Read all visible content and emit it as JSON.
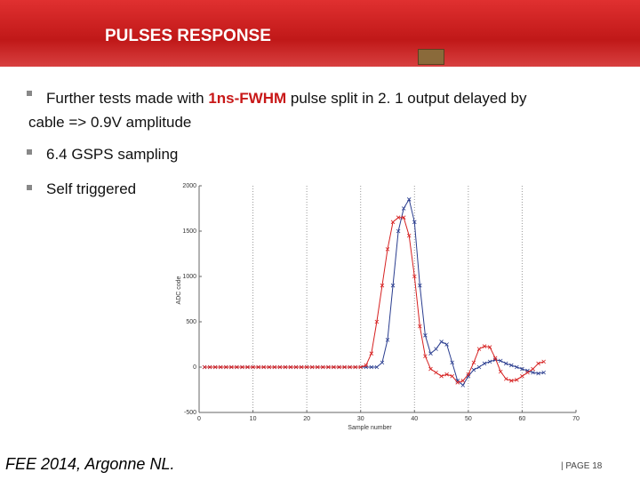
{
  "header": {
    "title": "PULSES RESPONSE"
  },
  "bullets": [
    {
      "before": "Further tests made with ",
      "highlight": "1ns-FWHM",
      "after": " pulse split in 2. 1 output delayed by cable => 0.9V amplitude"
    },
    {
      "text": "6.4 GSPS sampling"
    },
    {
      "text": "Self triggered"
    }
  ],
  "footer": {
    "left": "FEE 2014, Argonne NL.",
    "right": "| PAGE 18"
  },
  "chart_data": {
    "type": "line",
    "xlabel": "Sample number",
    "ylabel": "ADC code",
    "x": [
      1,
      2,
      3,
      4,
      5,
      6,
      7,
      8,
      9,
      10,
      11,
      12,
      13,
      14,
      15,
      16,
      17,
      18,
      19,
      20,
      21,
      22,
      23,
      24,
      25,
      26,
      27,
      28,
      29,
      30,
      31,
      32,
      33,
      34,
      35,
      36,
      37,
      38,
      39,
      40,
      41,
      42,
      43,
      44,
      45,
      46,
      47,
      48,
      49,
      50,
      51,
      52,
      53,
      54,
      55,
      56,
      57,
      58,
      59,
      60,
      61,
      62,
      63,
      64
    ],
    "series": [
      {
        "color": "#2a3d8f",
        "values": [
          0,
          0,
          0,
          0,
          0,
          0,
          0,
          0,
          0,
          0,
          0,
          0,
          0,
          0,
          0,
          0,
          0,
          0,
          0,
          0,
          0,
          0,
          0,
          0,
          0,
          0,
          0,
          0,
          0,
          0,
          0,
          0,
          0,
          50,
          300,
          900,
          1500,
          1750,
          1850,
          1600,
          900,
          350,
          150,
          200,
          280,
          250,
          50,
          -150,
          -200,
          -100,
          -30,
          0,
          40,
          60,
          80,
          70,
          40,
          20,
          0,
          -20,
          -40,
          -60,
          -70,
          -60
        ]
      },
      {
        "color": "#d62020",
        "values": [
          0,
          0,
          0,
          0,
          0,
          0,
          0,
          0,
          0,
          0,
          0,
          0,
          0,
          0,
          0,
          0,
          0,
          0,
          0,
          0,
          0,
          0,
          0,
          0,
          0,
          0,
          0,
          0,
          0,
          0,
          20,
          150,
          500,
          900,
          1300,
          1600,
          1650,
          1650,
          1450,
          1000,
          450,
          120,
          -20,
          -60,
          -100,
          -80,
          -100,
          -170,
          -150,
          -80,
          50,
          200,
          230,
          220,
          100,
          -50,
          -130,
          -150,
          -140,
          -100,
          -60,
          -20,
          40,
          60
        ]
      }
    ],
    "xlim": [
      0,
      70
    ],
    "xticks": [
      0,
      10,
      20,
      30,
      40,
      50,
      60,
      70
    ],
    "ylim": [
      -500,
      2000
    ],
    "yticks": [
      -500,
      0,
      500,
      1000,
      1500,
      2000
    ],
    "grid": "x"
  }
}
